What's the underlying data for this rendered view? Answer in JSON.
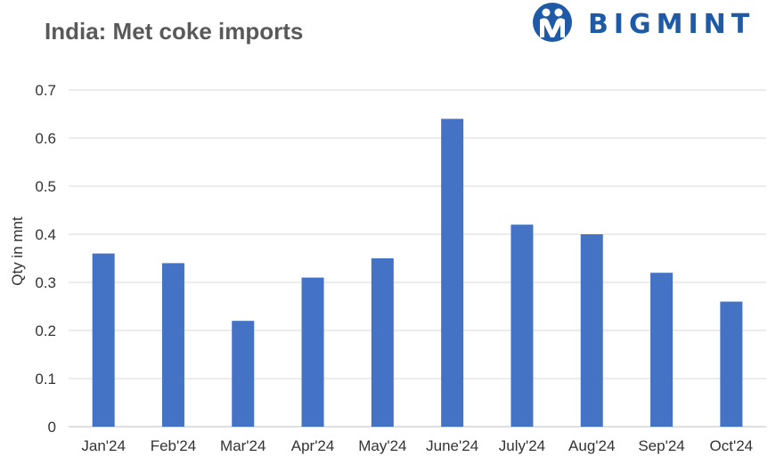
{
  "title": "India: Met coke imports",
  "logo": {
    "text": "BIGMINT",
    "icon": "bigmint-logo-icon",
    "color": "#1f5aa6"
  },
  "chart_data": {
    "type": "bar",
    "title": "India: Met coke imports",
    "xlabel": "",
    "ylabel": "Qty in mnt",
    "categories": [
      "Jan'24",
      "Feb'24",
      "Mar'24",
      "Apr'24",
      "May'24",
      "June'24",
      "July'24",
      "Aug'24",
      "Sep'24",
      "Oct'24"
    ],
    "values": [
      0.36,
      0.34,
      0.22,
      0.31,
      0.35,
      0.64,
      0.42,
      0.4,
      0.32,
      0.26
    ],
    "ylim": [
      0,
      0.7
    ],
    "yticks": [
      "0",
      "0.1",
      "0.2",
      "0.3",
      "0.4",
      "0.5",
      "0.6",
      "0.7"
    ],
    "grid": true,
    "bar_color": "#4472c4",
    "grid_color": "#d9d9d9"
  }
}
